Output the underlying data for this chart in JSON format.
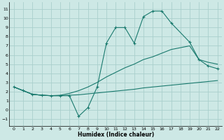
{
  "xlabel": "Humidex (Indice chaleur)",
  "bg_color": "#cde8e5",
  "grid_color": "#aacfcc",
  "line_color": "#1a7a6e",
  "x_ticks": [
    0,
    1,
    2,
    3,
    4,
    5,
    6,
    7,
    8,
    9,
    10,
    11,
    12,
    13,
    14,
    15,
    16,
    17,
    18,
    19,
    20,
    21,
    22
  ],
  "y_ticks": [
    -1,
    0,
    1,
    2,
    3,
    4,
    5,
    6,
    7,
    8,
    9,
    10,
    11
  ],
  "ylim": [
    -1.8,
    11.8
  ],
  "xlim": [
    -0.5,
    22.5
  ],
  "line1_x": [
    0,
    1,
    2,
    3,
    4,
    5,
    6,
    7,
    8,
    9,
    10,
    11,
    12,
    13,
    14,
    15,
    16,
    17,
    19,
    20,
    21,
    22
  ],
  "line1_y": [
    2.5,
    2.1,
    1.7,
    1.6,
    1.55,
    1.55,
    1.6,
    1.65,
    1.75,
    1.85,
    1.95,
    2.05,
    2.15,
    2.25,
    2.4,
    2.5,
    2.6,
    2.7,
    2.9,
    3.0,
    3.1,
    3.2
  ],
  "line2_x": [
    0,
    1,
    2,
    3,
    4,
    5,
    6,
    7,
    8,
    9,
    10,
    11,
    12,
    13,
    14,
    15,
    16,
    17,
    19,
    20,
    21,
    22
  ],
  "line2_y": [
    2.5,
    2.1,
    1.7,
    1.6,
    1.55,
    1.6,
    1.8,
    2.1,
    2.5,
    3.0,
    3.6,
    4.1,
    4.6,
    5.0,
    5.5,
    5.8,
    6.2,
    6.6,
    7.0,
    5.5,
    5.2,
    5.0
  ],
  "line3_x": [
    0,
    1,
    2,
    3,
    4,
    5,
    6,
    7,
    8,
    9,
    10,
    11,
    12,
    13,
    14,
    15,
    16,
    17,
    19,
    20,
    21,
    22
  ],
  "line3_y": [
    2.5,
    2.1,
    1.7,
    1.6,
    1.55,
    1.55,
    1.55,
    -0.7,
    0.25,
    2.5,
    7.3,
    9.0,
    9.0,
    7.3,
    10.2,
    10.8,
    10.8,
    9.5,
    7.4,
    5.5,
    4.8,
    4.5
  ]
}
